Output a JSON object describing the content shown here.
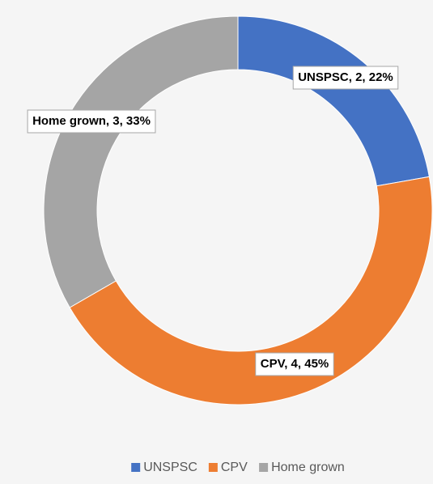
{
  "chart_data": {
    "type": "donut",
    "categories": [
      "UNSPSC",
      "CPV",
      "Home grown"
    ],
    "values": [
      2,
      4,
      3
    ],
    "value_labels": [
      "UNSPSC, 2, 22%",
      "CPV, 4, 45%",
      "Home grown, 3, 33%"
    ],
    "colors": [
      "#4472c4",
      "#ed7d31",
      "#a5a5a5"
    ],
    "legend": "bottom"
  }
}
